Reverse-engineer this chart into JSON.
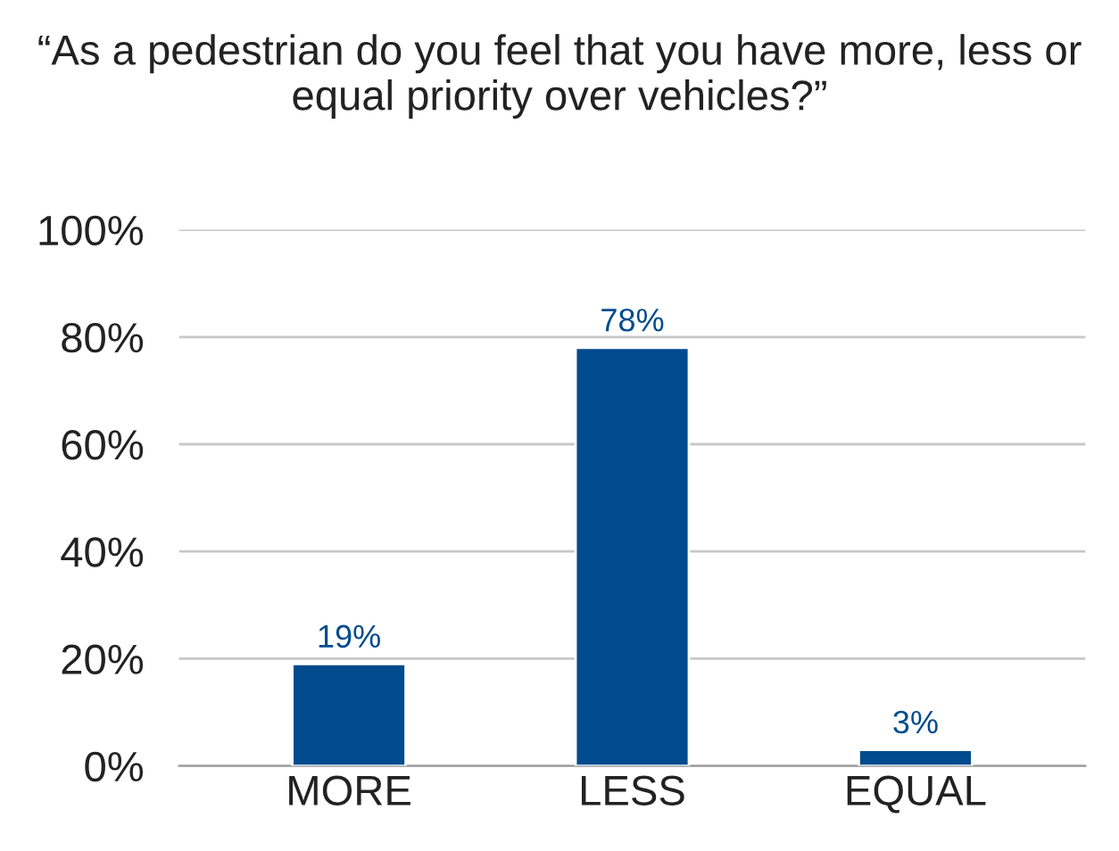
{
  "chart_data": {
    "type": "bar",
    "title": "“As a pedestrian do you feel that you have more, less or equal priority over vehicles?”",
    "categories": [
      "MORE",
      "LESS",
      "EQUAL"
    ],
    "values": [
      19,
      78,
      3
    ],
    "value_labels": [
      "19%",
      "78%",
      "3%"
    ],
    "color": "#004b8d",
    "ylim": [
      0,
      100
    ],
    "yticks": [
      {
        "value": 0,
        "label": "0%"
      },
      {
        "value": 20,
        "label": "20%"
      },
      {
        "value": 40,
        "label": "40%"
      },
      {
        "value": 60,
        "label": "60%"
      },
      {
        "value": 80,
        "label": "80%"
      },
      {
        "value": 100,
        "label": "100%"
      }
    ],
    "grid": "y"
  }
}
